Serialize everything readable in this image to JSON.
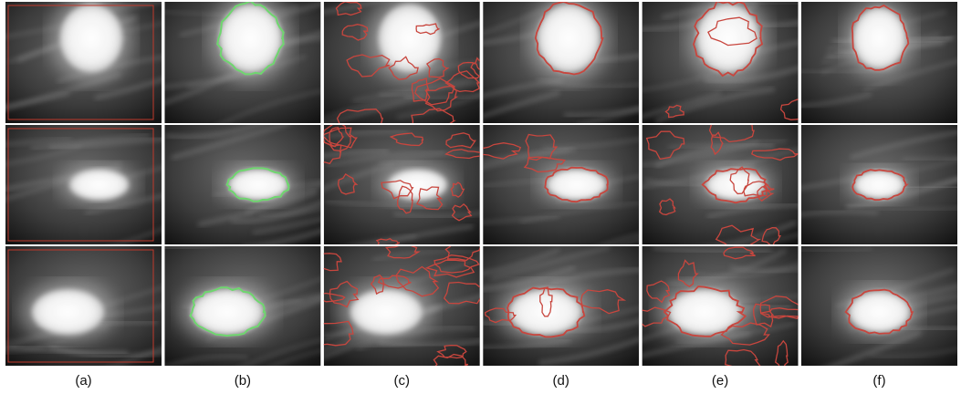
{
  "figure": {
    "labels": [
      "(a)",
      "(b)",
      "(c)",
      "(d)",
      "(e)",
      "(f)"
    ]
  }
}
